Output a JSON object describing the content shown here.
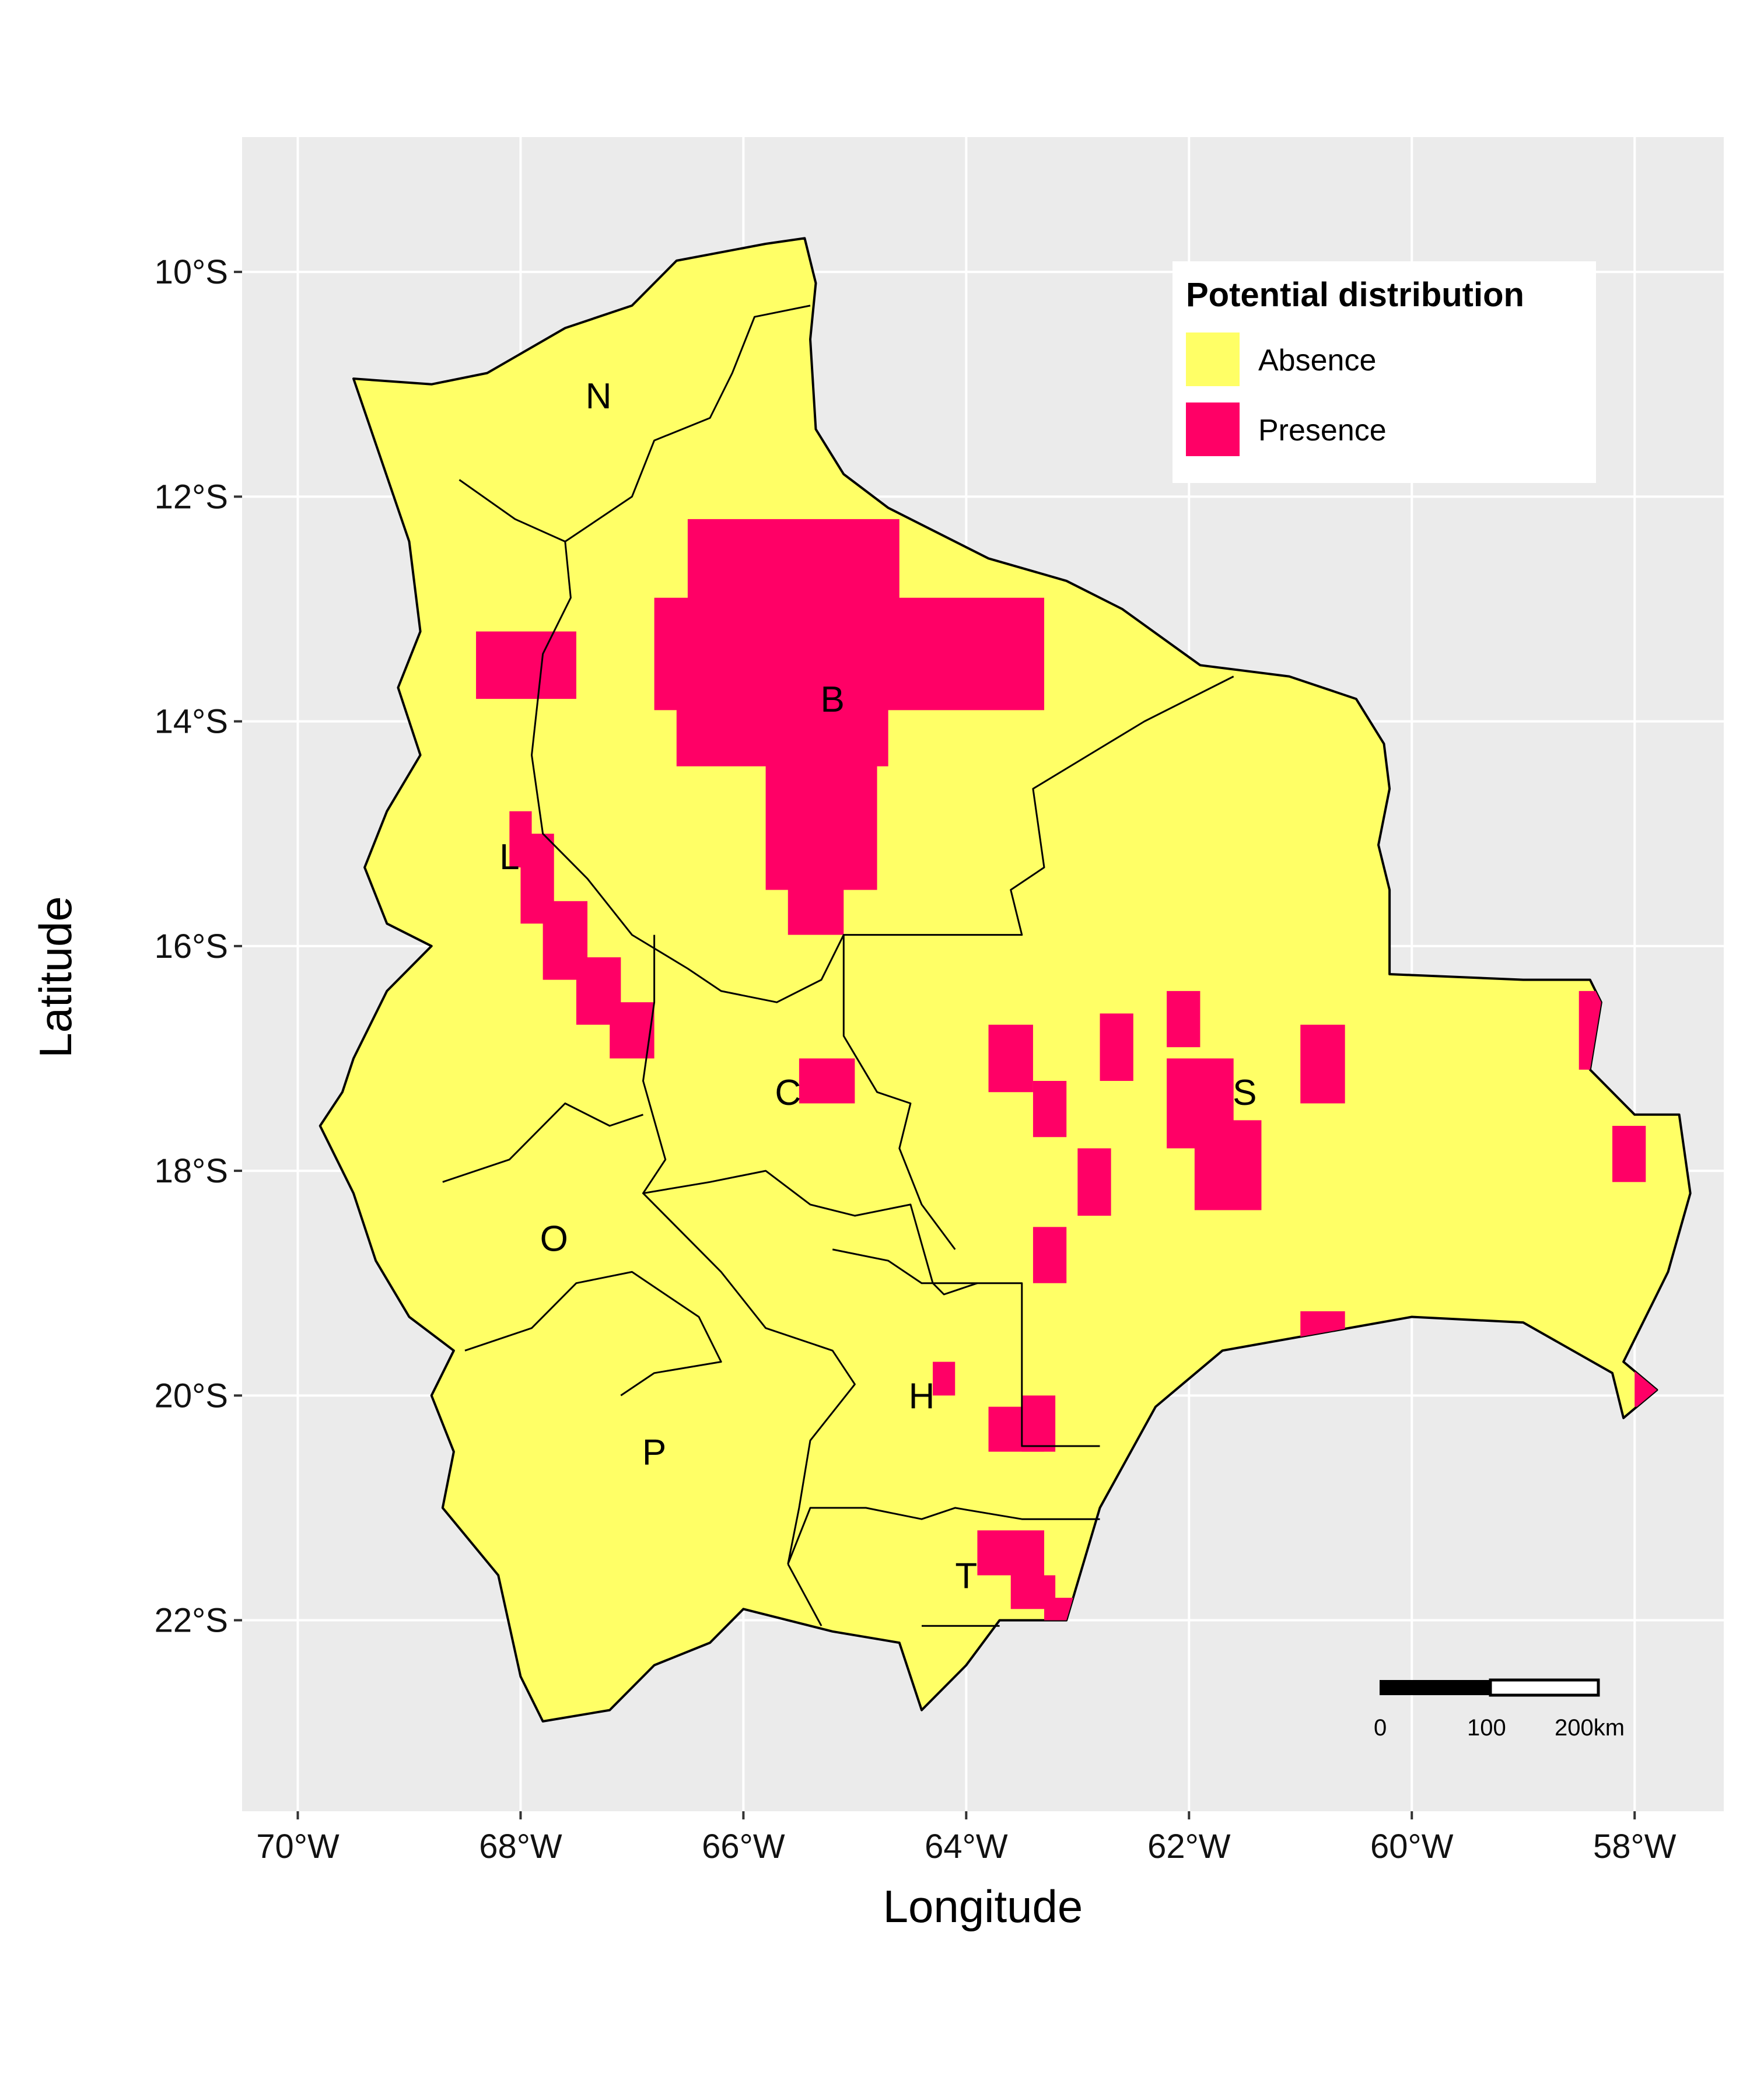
{
  "map": {
    "xlabel": "Longitude",
    "ylabel": "Latitude",
    "lon_range": [
      -70.5,
      -57.2
    ],
    "lat_range": [
      -23.7,
      -8.8
    ],
    "x_ticks": [
      "70°W",
      "68°W",
      "66°W",
      "64°W",
      "62°W",
      "60°W",
      "58°W"
    ],
    "x_tick_values": [
      -70,
      -68,
      -66,
      -64,
      -62,
      -60,
      -58
    ],
    "y_ticks": [
      "10°S",
      "12°S",
      "14°S",
      "16°S",
      "18°S",
      "20°S",
      "22°S"
    ],
    "y_tick_values": [
      -10,
      -12,
      -14,
      -16,
      -18,
      -20,
      -22
    ],
    "grid": true,
    "colors": {
      "panel": "#ebebeb",
      "grid": "#ffffff",
      "absence": "#ffff66",
      "presence": "#ff0066",
      "border": "#000000"
    }
  },
  "legend": {
    "title": "Potential distribution",
    "position": "top-right",
    "items": [
      {
        "label": "Absence",
        "color": "#ffff66"
      },
      {
        "label": "Presence",
        "color": "#ff0066"
      }
    ]
  },
  "departments": [
    {
      "code": "N",
      "lon": -67.3,
      "lat": -11.1
    },
    {
      "code": "B",
      "lon": -65.2,
      "lat": -13.8
    },
    {
      "code": "L",
      "lon": -68.1,
      "lat": -15.2
    },
    {
      "code": "C",
      "lon": -65.6,
      "lat": -17.3
    },
    {
      "code": "S",
      "lon": -61.5,
      "lat": -17.3
    },
    {
      "code": "O",
      "lon": -67.7,
      "lat": -18.6
    },
    {
      "code": "H",
      "lon": -64.4,
      "lat": -20.0
    },
    {
      "code": "P",
      "lon": -66.8,
      "lat": -20.5
    },
    {
      "code": "T",
      "lon": -64.0,
      "lat": -21.6
    }
  ],
  "outline": [
    [
      -69.5,
      -10.95
    ],
    [
      -68.8,
      -11.0
    ],
    [
      -68.3,
      -10.9
    ],
    [
      -67.6,
      -10.5
    ],
    [
      -67.0,
      -10.3
    ],
    [
      -66.6,
      -9.9
    ],
    [
      -65.8,
      -9.75
    ],
    [
      -65.45,
      -9.7
    ],
    [
      -65.35,
      -10.1
    ],
    [
      -65.4,
      -10.6
    ],
    [
      -65.35,
      -11.4
    ],
    [
      -65.1,
      -11.8
    ],
    [
      -64.7,
      -12.1
    ],
    [
      -64.3,
      -12.3
    ],
    [
      -63.8,
      -12.55
    ],
    [
      -63.1,
      -12.75
    ],
    [
      -62.6,
      -13.0
    ],
    [
      -61.9,
      -13.5
    ],
    [
      -61.1,
      -13.6
    ],
    [
      -60.5,
      -13.8
    ],
    [
      -60.25,
      -14.2
    ],
    [
      -60.2,
      -14.6
    ],
    [
      -60.3,
      -15.1
    ],
    [
      -60.2,
      -15.5
    ],
    [
      -60.2,
      -16.25
    ],
    [
      -59.0,
      -16.3
    ],
    [
      -58.4,
      -16.3
    ],
    [
      -58.3,
      -16.5
    ],
    [
      -58.4,
      -17.1
    ],
    [
      -58.0,
      -17.5
    ],
    [
      -57.6,
      -17.5
    ],
    [
      -57.5,
      -18.2
    ],
    [
      -57.7,
      -18.9
    ],
    [
      -57.8,
      -19.1
    ],
    [
      -58.1,
      -19.7
    ],
    [
      -57.8,
      -19.95
    ],
    [
      -58.1,
      -20.2
    ],
    [
      -58.2,
      -19.8
    ],
    [
      -59.0,
      -19.35
    ],
    [
      -60.0,
      -19.3
    ],
    [
      -61.7,
      -19.6
    ],
    [
      -62.3,
      -20.1
    ],
    [
      -62.8,
      -21.0
    ],
    [
      -63.1,
      -22.0
    ],
    [
      -63.7,
      -22.0
    ],
    [
      -64.0,
      -22.4
    ],
    [
      -64.4,
      -22.8
    ],
    [
      -64.6,
      -22.2
    ],
    [
      -65.2,
      -22.1
    ],
    [
      -66.0,
      -21.9
    ],
    [
      -66.3,
      -22.2
    ],
    [
      -66.8,
      -22.4
    ],
    [
      -67.2,
      -22.8
    ],
    [
      -67.8,
      -22.9
    ],
    [
      -68.0,
      -22.5
    ],
    [
      -68.2,
      -21.6
    ],
    [
      -68.7,
      -21.0
    ],
    [
      -68.6,
      -20.5
    ],
    [
      -68.8,
      -20.0
    ],
    [
      -68.6,
      -19.6
    ],
    [
      -69.0,
      -19.3
    ],
    [
      -69.3,
      -18.8
    ],
    [
      -69.5,
      -18.2
    ],
    [
      -69.8,
      -17.6
    ],
    [
      -69.6,
      -17.3
    ],
    [
      -69.5,
      -17.0
    ],
    [
      -69.2,
      -16.4
    ],
    [
      -68.8,
      -16.0
    ],
    [
      -69.2,
      -15.8
    ],
    [
      -69.4,
      -15.3
    ],
    [
      -69.2,
      -14.8
    ],
    [
      -68.9,
      -14.3
    ],
    [
      -69.1,
      -13.7
    ],
    [
      -68.9,
      -13.2
    ],
    [
      -69.0,
      -12.4
    ],
    [
      -69.5,
      -10.95
    ]
  ],
  "boundaries": [
    [
      [
        -68.55,
        -11.85
      ],
      [
        -68.05,
        -12.2
      ],
      [
        -67.6,
        -12.4
      ]
    ],
    [
      [
        -67.6,
        -12.4
      ],
      [
        -67.0,
        -12.0
      ],
      [
        -66.8,
        -11.5
      ],
      [
        -66.3,
        -11.3
      ],
      [
        -66.1,
        -10.9
      ],
      [
        -65.9,
        -10.4
      ],
      [
        -65.4,
        -10.3
      ]
    ],
    [
      [
        -67.6,
        -12.4
      ],
      [
        -67.55,
        -12.9
      ],
      [
        -67.8,
        -13.4
      ],
      [
        -67.9,
        -14.3
      ],
      [
        -67.8,
        -15.0
      ],
      [
        -67.4,
        -15.4
      ],
      [
        -67.0,
        -15.9
      ],
      [
        -66.5,
        -16.2
      ],
      [
        -66.2,
        -16.4
      ],
      [
        -65.7,
        -16.5
      ],
      [
        -65.3,
        -16.3
      ],
      [
        -65.1,
        -15.9
      ],
      [
        -64.5,
        -15.9
      ],
      [
        -63.9,
        -15.9
      ],
      [
        -63.5,
        -15.9
      ],
      [
        -63.6,
        -15.5
      ],
      [
        -63.3,
        -15.3
      ],
      [
        -63.4,
        -14.6
      ],
      [
        -62.4,
        -14.0
      ],
      [
        -61.6,
        -13.6
      ]
    ],
    [
      [
        -66.8,
        -15.9
      ],
      [
        -66.8,
        -16.5
      ],
      [
        -66.9,
        -17.2
      ],
      [
        -66.7,
        -17.9
      ],
      [
        -66.9,
        -18.2
      ],
      [
        -66.3,
        -18.1
      ],
      [
        -65.8,
        -18.0
      ],
      [
        -65.4,
        -18.3
      ],
      [
        -65.0,
        -18.4
      ],
      [
        -64.5,
        -18.3
      ],
      [
        -64.3,
        -19.0
      ],
      [
        -64.2,
        -19.1
      ],
      [
        -63.9,
        -19.0
      ]
    ],
    [
      [
        -65.1,
        -15.9
      ],
      [
        -65.1,
        -16.8
      ],
      [
        -64.8,
        -17.3
      ],
      [
        -64.5,
        -17.4
      ],
      [
        -64.6,
        -17.8
      ],
      [
        -64.4,
        -18.3
      ],
      [
        -64.1,
        -18.7
      ]
    ],
    [
      [
        -68.7,
        -18.1
      ],
      [
        -68.1,
        -17.9
      ],
      [
        -67.6,
        -17.4
      ],
      [
        -67.2,
        -17.6
      ],
      [
        -66.9,
        -17.5
      ]
    ],
    [
      [
        -68.5,
        -19.6
      ],
      [
        -67.9,
        -19.4
      ],
      [
        -67.5,
        -19.0
      ],
      [
        -67.0,
        -18.9
      ],
      [
        -66.7,
        -19.1
      ],
      [
        -66.4,
        -19.3
      ],
      [
        -66.2,
        -19.7
      ],
      [
        -66.8,
        -19.8
      ],
      [
        -67.1,
        -20.0
      ]
    ],
    [
      [
        -66.9,
        -18.2
      ],
      [
        -66.2,
        -18.9
      ],
      [
        -65.8,
        -19.4
      ],
      [
        -65.2,
        -19.6
      ],
      [
        -65.0,
        -19.9
      ],
      [
        -65.4,
        -20.4
      ],
      [
        -65.5,
        -21.0
      ],
      [
        -65.6,
        -21.5
      ]
    ],
    [
      [
        -65.6,
        -21.5
      ],
      [
        -65.4,
        -21.0
      ],
      [
        -64.9,
        -21.0
      ],
      [
        -64.4,
        -21.1
      ],
      [
        -64.1,
        -21.0
      ],
      [
        -63.5,
        -21.1
      ],
      [
        -62.8,
        -21.1
      ]
    ],
    [
      [
        -65.2,
        -18.7
      ],
      [
        -64.7,
        -18.8
      ],
      [
        -64.4,
        -19.0
      ],
      [
        -63.9,
        -19.0
      ],
      [
        -63.5,
        -19.0
      ],
      [
        -63.5,
        -20.0
      ],
      [
        -63.5,
        -20.45
      ],
      [
        -63.0,
        -20.45
      ],
      [
        -62.8,
        -20.45
      ]
    ],
    [
      [
        -65.6,
        -21.5
      ],
      [
        -65.3,
        -22.05
      ]
    ],
    [
      [
        -64.4,
        -22.05
      ],
      [
        -63.7,
        -22.05
      ]
    ]
  ],
  "presence_patches": [
    [
      -66.5,
      -12.2,
      1.9,
      1.0
    ],
    [
      -66.8,
      -12.9,
      3.5,
      1.0
    ],
    [
      -66.6,
      -13.5,
      1.9,
      0.9
    ],
    [
      -65.8,
      -14.0,
      1.0,
      1.5
    ],
    [
      -65.6,
      -15.0,
      0.5,
      0.9
    ],
    [
      -64.8,
      -13.0,
      1.0,
      0.5
    ],
    [
      -64.4,
      -13.4,
      0.6,
      0.4
    ],
    [
      -68.4,
      -13.2,
      0.9,
      0.6
    ],
    [
      -68.1,
      -14.8,
      0.2,
      0.5
    ],
    [
      -68.0,
      -15.0,
      0.3,
      0.8
    ],
    [
      -67.8,
      -15.6,
      0.4,
      0.7
    ],
    [
      -67.5,
      -16.1,
      0.4,
      0.6
    ],
    [
      -67.2,
      -16.5,
      0.4,
      0.5
    ],
    [
      -62.2,
      -17.0,
      0.6,
      0.8
    ],
    [
      -61.95,
      -17.55,
      0.6,
      0.8
    ],
    [
      -63.8,
      -16.7,
      0.4,
      0.6
    ],
    [
      -62.8,
      -16.6,
      0.3,
      0.6
    ],
    [
      -62.2,
      -16.4,
      0.3,
      0.5
    ],
    [
      -61.0,
      -16.7,
      0.4,
      0.7
    ],
    [
      -63.4,
      -17.2,
      0.3,
      0.5
    ],
    [
      -63.0,
      -17.8,
      0.3,
      0.6
    ],
    [
      -63.4,
      -18.5,
      0.3,
      0.5
    ],
    [
      -61.0,
      -19.25,
      0.4,
      0.35
    ],
    [
      -58.5,
      -16.4,
      0.4,
      0.7
    ],
    [
      -58.2,
      -17.6,
      0.3,
      0.5
    ],
    [
      -58.0,
      -19.7,
      0.2,
      0.4
    ],
    [
      -65.5,
      -17.0,
      0.5,
      0.4
    ],
    [
      -64.3,
      -19.7,
      0.2,
      0.3
    ],
    [
      -63.8,
      -20.1,
      0.5,
      0.4
    ],
    [
      -63.5,
      -20.0,
      0.3,
      0.5
    ],
    [
      -63.9,
      -21.2,
      0.6,
      0.4
    ],
    [
      -63.6,
      -21.6,
      0.4,
      0.3
    ],
    [
      -63.3,
      -21.8,
      0.3,
      0.3
    ]
  ],
  "scale_bar": {
    "labels": [
      "0",
      "100",
      "200km"
    ]
  }
}
